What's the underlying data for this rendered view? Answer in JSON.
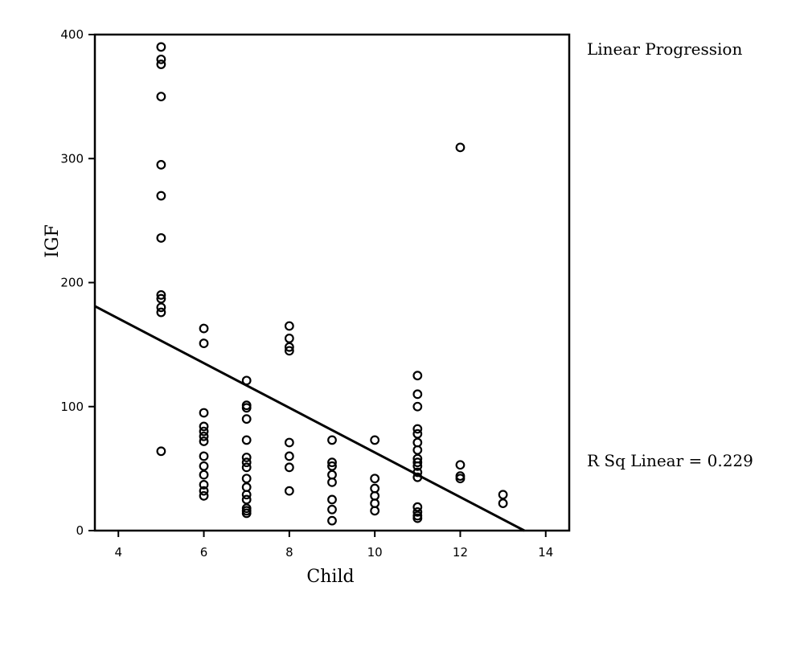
{
  "chart_data": {
    "type": "scatter",
    "xlabel": "Child",
    "ylabel": "IGF",
    "xlim": [
      3.45,
      14.55
    ],
    "ylim": [
      0,
      400
    ],
    "x_ticks": [
      4,
      6,
      8,
      10,
      12,
      14
    ],
    "y_ticks": [
      0,
      100,
      200,
      300,
      400
    ],
    "fit_line_label": "Linear Progression",
    "r_squared_label": "R Sq Linear = 0.229",
    "fit_line": {
      "x": [
        3.45,
        13.5
      ],
      "y": [
        181,
        0
      ]
    },
    "points": [
      [
        5,
        390
      ],
      [
        5,
        380
      ],
      [
        5,
        376
      ],
      [
        5,
        350
      ],
      [
        5,
        295
      ],
      [
        5,
        270
      ],
      [
        5,
        236
      ],
      [
        5,
        190
      ],
      [
        5,
        187
      ],
      [
        5,
        180
      ],
      [
        5,
        176
      ],
      [
        5,
        64
      ],
      [
        6,
        163
      ],
      [
        6,
        151
      ],
      [
        6,
        95
      ],
      [
        6,
        84
      ],
      [
        6,
        80
      ],
      [
        6,
        76
      ],
      [
        6,
        72
      ],
      [
        6,
        60
      ],
      [
        6,
        52
      ],
      [
        6,
        45
      ],
      [
        6,
        37
      ],
      [
        6,
        32
      ],
      [
        6,
        28
      ],
      [
        7,
        121
      ],
      [
        7,
        101
      ],
      [
        7,
        99
      ],
      [
        7,
        90
      ],
      [
        7,
        73
      ],
      [
        7,
        59
      ],
      [
        7,
        55
      ],
      [
        7,
        51
      ],
      [
        7,
        42
      ],
      [
        7,
        35
      ],
      [
        7,
        29
      ],
      [
        7,
        25
      ],
      [
        7,
        18
      ],
      [
        7,
        16
      ],
      [
        7,
        14
      ],
      [
        8,
        165
      ],
      [
        8,
        155
      ],
      [
        8,
        148
      ],
      [
        8,
        145
      ],
      [
        8,
        71
      ],
      [
        8,
        60
      ],
      [
        8,
        51
      ],
      [
        8,
        32
      ],
      [
        9,
        73
      ],
      [
        9,
        55
      ],
      [
        9,
        52
      ],
      [
        9,
        45
      ],
      [
        9,
        39
      ],
      [
        9,
        25
      ],
      [
        9,
        17
      ],
      [
        9,
        8
      ],
      [
        10,
        73
      ],
      [
        10,
        42
      ],
      [
        10,
        34
      ],
      [
        10,
        28
      ],
      [
        10,
        22
      ],
      [
        10,
        16
      ],
      [
        11,
        125
      ],
      [
        11,
        110
      ],
      [
        11,
        100
      ],
      [
        11,
        82
      ],
      [
        11,
        78
      ],
      [
        11,
        71
      ],
      [
        11,
        65
      ],
      [
        11,
        58
      ],
      [
        11,
        55
      ],
      [
        11,
        52
      ],
      [
        11,
        47
      ],
      [
        11,
        43
      ],
      [
        11,
        19
      ],
      [
        11,
        15
      ],
      [
        11,
        12
      ],
      [
        11,
        10
      ],
      [
        12,
        309
      ],
      [
        12,
        53
      ],
      [
        12,
        44
      ],
      [
        12,
        42
      ],
      [
        13,
        29
      ],
      [
        13,
        22
      ]
    ]
  }
}
